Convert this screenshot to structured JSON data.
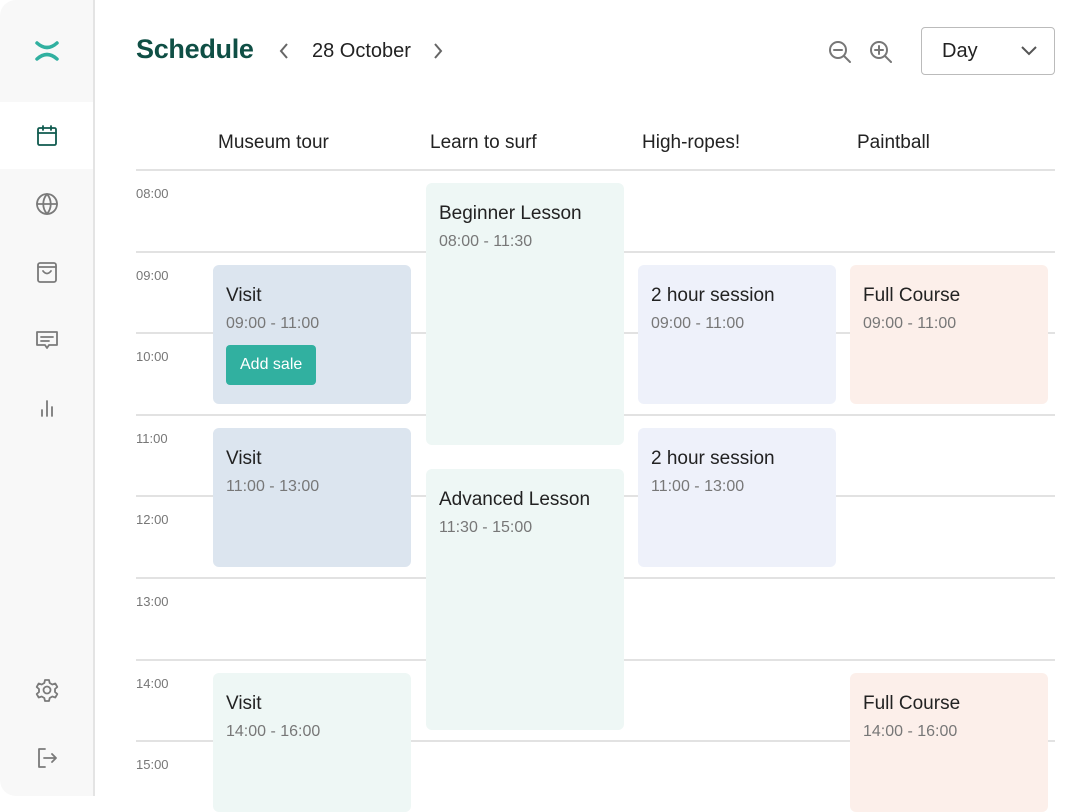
{
  "header": {
    "title": "Schedule",
    "date": "28 October",
    "view_select": "Day"
  },
  "sidebar": {
    "items": [
      {
        "name": "logo",
        "icon": "logo-icon"
      },
      {
        "name": "calendar",
        "icon": "calendar-icon",
        "active": true
      },
      {
        "name": "globe",
        "icon": "globe-icon"
      },
      {
        "name": "shop",
        "icon": "shopping-bag-icon"
      },
      {
        "name": "messages",
        "icon": "message-icon"
      },
      {
        "name": "analytics",
        "icon": "bar-chart-icon"
      },
      {
        "name": "settings",
        "icon": "gear-icon"
      },
      {
        "name": "logout",
        "icon": "logout-icon"
      }
    ]
  },
  "columns": [
    "Museum tour",
    "Learn to surf",
    "High-ropes!",
    "Paintball"
  ],
  "times": [
    "08:00",
    "09:00",
    "10:00",
    "11:00",
    "12:00",
    "13:00",
    "14:00",
    "15:00"
  ],
  "colors": {
    "brand": "#0f4f45",
    "accent": "#31b0a0",
    "blue": "#dce5ef",
    "mint": "#eef7f5",
    "lavender": "#eef1fa",
    "peach": "#fcefea"
  },
  "events": [
    {
      "col": 0,
      "title": "Visit",
      "time": "09:00 - 11:00",
      "color": "#dce5ef",
      "button": "Add sale"
    },
    {
      "col": 0,
      "title": "Visit",
      "time": "11:00 - 13:00",
      "color": "#dce5ef"
    },
    {
      "col": 0,
      "title": "Visit",
      "time": "14:00 - 16:00",
      "color": "#eef7f5"
    },
    {
      "col": 1,
      "title": "Beginner Lesson",
      "time": "08:00 - 11:30",
      "color": "#eef7f5"
    },
    {
      "col": 1,
      "title": "Advanced Lesson",
      "time": "11:30 - 15:00",
      "color": "#eef7f5"
    },
    {
      "col": 2,
      "title": "2 hour session",
      "time": "09:00 - 11:00",
      "color": "#eef1fa"
    },
    {
      "col": 2,
      "title": "2 hour session",
      "time": "11:00 - 13:00",
      "color": "#eef1fa"
    },
    {
      "col": 3,
      "title": "Full Course",
      "time": "09:00 - 11:00",
      "color": "#fcefea"
    },
    {
      "col": 3,
      "title": "Full Course",
      "time": "14:00 - 16:00",
      "color": "#fcefea"
    }
  ]
}
